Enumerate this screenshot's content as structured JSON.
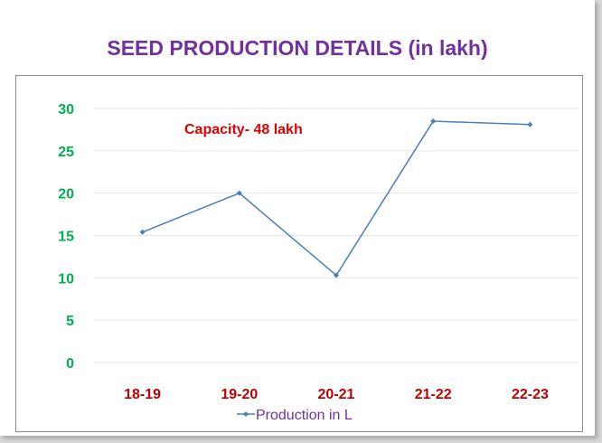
{
  "chart_data": {
    "type": "line",
    "title": "SEED PRODUCTION DETAILS (in lakh)",
    "categories": [
      "18-19",
      "19-20",
      "20-21",
      "21-22",
      "22-23"
    ],
    "series": [
      {
        "name": "Production in L",
        "values": [
          15.4,
          20.0,
          10.3,
          28.5,
          28.1
        ]
      }
    ],
    "ylim": [
      0,
      30
    ],
    "yticks": [
      0,
      5,
      10,
      15,
      20,
      25,
      30
    ],
    "grid": true,
    "legend": "bottom",
    "annotation": "Capacity- 48 lakh",
    "colors": {
      "title": "#7030a0",
      "line": "#4a7ebb",
      "ytick": "#00b050",
      "xtick": "#c00000",
      "annotation": "#e00000",
      "legend": "#7030a0"
    }
  }
}
